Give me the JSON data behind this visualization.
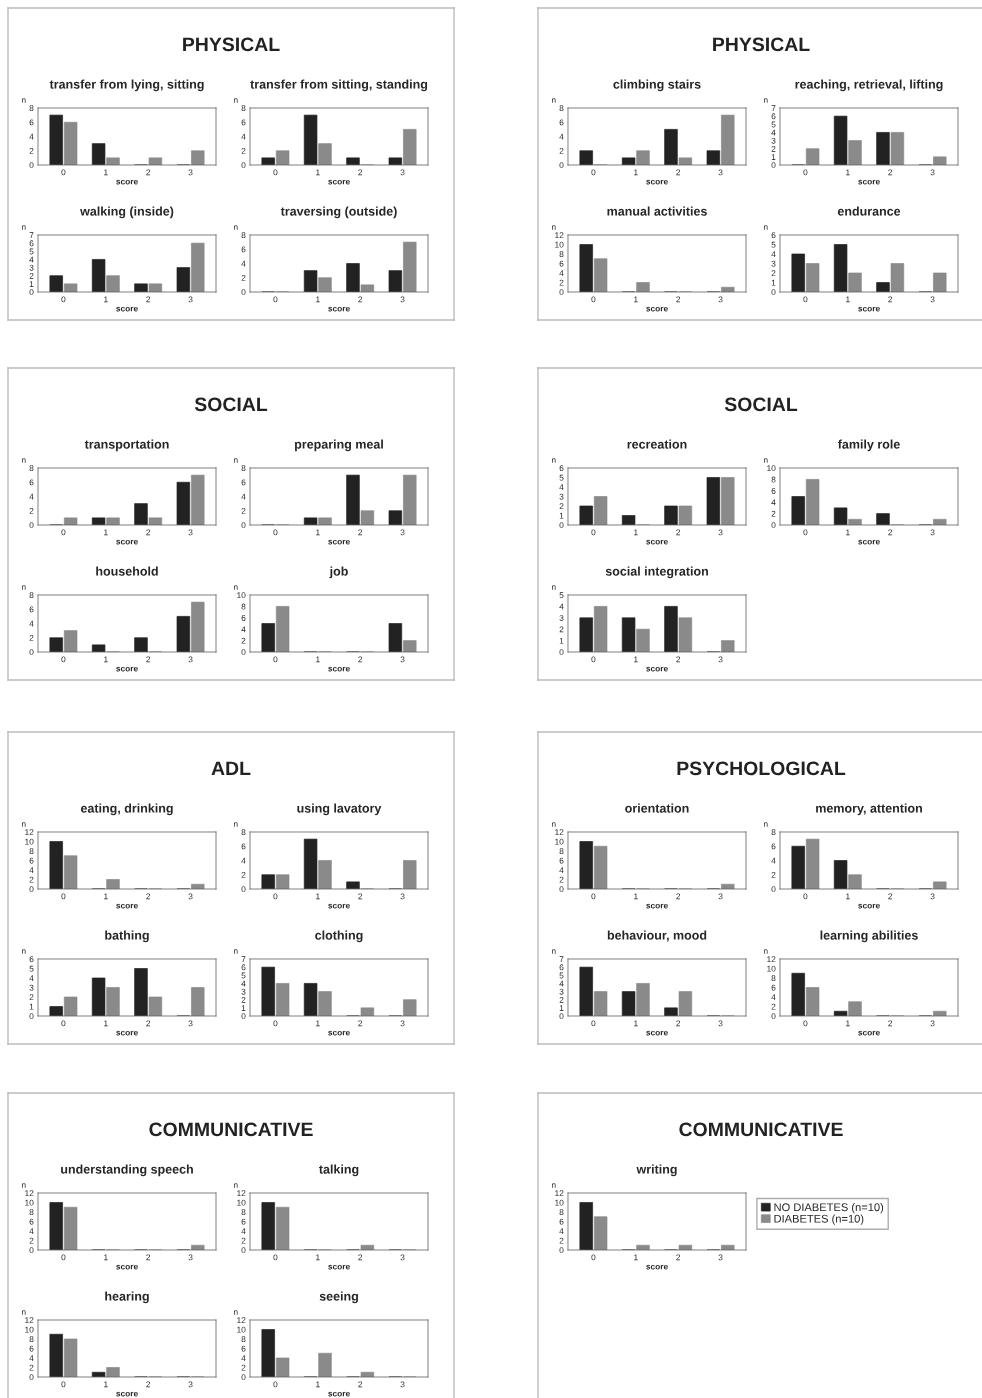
{
  "chart_data": [
    {
      "type": "other",
      "title": "PHYSICAL"
    },
    {
      "type": "bar",
      "title": "transfer from lying, sitting",
      "xlabel": "score",
      "ylabel": "n",
      "categories": [
        "0",
        "1",
        "2",
        "3"
      ],
      "ylim": [
        0,
        8
      ],
      "yticks": [
        0,
        2,
        4,
        6,
        8
      ],
      "series": [
        {
          "color": "#222222",
          "values": [
            7,
            3,
            0,
            0
          ]
        },
        {
          "color": "#8a8a8a",
          "values": [
            6,
            1,
            1,
            2
          ]
        }
      ]
    },
    {
      "type": "bar",
      "title": "transfer from sitting, standing",
      "xlabel": "score",
      "ylabel": "n",
      "categories": [
        "0",
        "1",
        "2",
        "3"
      ],
      "ylim": [
        0,
        8
      ],
      "yticks": [
        0,
        2,
        4,
        6,
        8
      ],
      "series": [
        {
          "color": "#222222",
          "values": [
            1,
            7,
            1,
            1
          ]
        },
        {
          "color": "#8a8a8a",
          "values": [
            2,
            3,
            0,
            5
          ]
        }
      ]
    },
    {
      "type": "bar",
      "title": "walking (inside)",
      "xlabel": "score",
      "ylabel": "n",
      "categories": [
        "0",
        "1",
        "2",
        "3"
      ],
      "ylim": [
        0,
        7
      ],
      "yticks": [
        0,
        1,
        2,
        3,
        4,
        5,
        6,
        7
      ],
      "series": [
        {
          "color": "#222222",
          "values": [
            2,
            4,
            1,
            3
          ]
        },
        {
          "color": "#8a8a8a",
          "values": [
            1,
            2,
            1,
            6
          ]
        }
      ]
    },
    {
      "type": "bar",
      "title": "traversing (outside)",
      "xlabel": "score",
      "ylabel": "n",
      "categories": [
        "0",
        "1",
        "2",
        "3"
      ],
      "ylim": [
        0,
        8
      ],
      "yticks": [
        0,
        2,
        4,
        6,
        8
      ],
      "series": [
        {
          "color": "#222222",
          "values": [
            0,
            3,
            4,
            3
          ]
        },
        {
          "color": "#8a8a8a",
          "values": [
            0,
            2,
            1,
            7
          ]
        }
      ]
    },
    {
      "type": "other",
      "title": "PHYSICAL"
    },
    {
      "type": "bar",
      "title": "climbing stairs",
      "xlabel": "score",
      "ylabel": "n",
      "categories": [
        "0",
        "1",
        "2",
        "3"
      ],
      "ylim": [
        0,
        8
      ],
      "yticks": [
        0,
        2,
        4,
        6,
        8
      ],
      "series": [
        {
          "color": "#222222",
          "values": [
            2,
            1,
            5,
            2
          ]
        },
        {
          "color": "#8a8a8a",
          "values": [
            0,
            2,
            1,
            7
          ]
        }
      ]
    },
    {
      "type": "bar",
      "title": "reaching, retrieval, lifting",
      "xlabel": "score",
      "ylabel": "n",
      "categories": [
        "0",
        "1",
        "2",
        "3"
      ],
      "ylim": [
        0,
        7
      ],
      "yticks": [
        0,
        1,
        2,
        3,
        4,
        5,
        6,
        7
      ],
      "series": [
        {
          "color": "#222222",
          "values": [
            0,
            6,
            4,
            0
          ]
        },
        {
          "color": "#8a8a8a",
          "values": [
            2,
            3,
            4,
            1
          ]
        }
      ]
    },
    {
      "type": "bar",
      "title": "manual activities",
      "xlabel": "score",
      "ylabel": "n",
      "categories": [
        "0",
        "1",
        "2",
        "3"
      ],
      "ylim": [
        0,
        12
      ],
      "yticks": [
        0,
        2,
        4,
        6,
        8,
        10,
        12
      ],
      "series": [
        {
          "color": "#222222",
          "values": [
            10,
            0,
            0,
            0
          ]
        },
        {
          "color": "#8a8a8a",
          "values": [
            7,
            2,
            0,
            1
          ]
        }
      ]
    },
    {
      "type": "bar",
      "title": "endurance",
      "xlabel": "score",
      "ylabel": "n",
      "categories": [
        "0",
        "1",
        "2",
        "3"
      ],
      "ylim": [
        0,
        6
      ],
      "yticks": [
        0,
        1,
        2,
        3,
        4,
        5,
        6
      ],
      "series": [
        {
          "color": "#222222",
          "values": [
            4,
            5,
            1,
            0
          ]
        },
        {
          "color": "#8a8a8a",
          "values": [
            3,
            2,
            3,
            2
          ]
        }
      ]
    },
    {
      "type": "other",
      "title": "SOCIAL"
    },
    {
      "type": "bar",
      "title": "transportation",
      "xlabel": "score",
      "ylabel": "n",
      "categories": [
        "0",
        "1",
        "2",
        "3"
      ],
      "ylim": [
        0,
        8
      ],
      "yticks": [
        0,
        2,
        4,
        6,
        8
      ],
      "series": [
        {
          "color": "#222222",
          "values": [
            0,
            1,
            3,
            6
          ]
        },
        {
          "color": "#8a8a8a",
          "values": [
            1,
            1,
            1,
            7
          ]
        }
      ]
    },
    {
      "type": "bar",
      "title": "preparing meal",
      "xlabel": "score",
      "ylabel": "n",
      "categories": [
        "0",
        "1",
        "2",
        "3"
      ],
      "ylim": [
        0,
        8
      ],
      "yticks": [
        0,
        2,
        4,
        6,
        8
      ],
      "series": [
        {
          "color": "#222222",
          "values": [
            0,
            1,
            7,
            2
          ]
        },
        {
          "color": "#8a8a8a",
          "values": [
            0,
            1,
            2,
            7
          ]
        }
      ]
    },
    {
      "type": "bar",
      "title": "household",
      "xlabel": "score",
      "ylabel": "n",
      "categories": [
        "0",
        "1",
        "2",
        "3"
      ],
      "ylim": [
        0,
        8
      ],
      "yticks": [
        0,
        2,
        4,
        6,
        8
      ],
      "series": [
        {
          "color": "#222222",
          "values": [
            2,
            1,
            2,
            5
          ]
        },
        {
          "color": "#8a8a8a",
          "values": [
            3,
            0,
            0,
            7
          ]
        }
      ]
    },
    {
      "type": "bar",
      "title": "job",
      "xlabel": "score",
      "ylabel": "n",
      "categories": [
        "0",
        "1",
        "2",
        "3"
      ],
      "ylim": [
        0,
        10
      ],
      "yticks": [
        0,
        2,
        4,
        6,
        8,
        10
      ],
      "series": [
        {
          "color": "#222222",
          "values": [
            5,
            0,
            0,
            5
          ]
        },
        {
          "color": "#8a8a8a",
          "values": [
            8,
            0,
            0,
            2
          ]
        }
      ]
    },
    {
      "type": "other",
      "title": "SOCIAL"
    },
    {
      "type": "bar",
      "title": "recreation",
      "xlabel": "score",
      "ylabel": "n",
      "categories": [
        "0",
        "1",
        "2",
        "3"
      ],
      "ylim": [
        0,
        6
      ],
      "yticks": [
        0,
        1,
        2,
        3,
        4,
        5,
        6
      ],
      "series": [
        {
          "color": "#222222",
          "values": [
            2,
            1,
            2,
            5
          ]
        },
        {
          "color": "#8a8a8a",
          "values": [
            3,
            0,
            2,
            5
          ]
        }
      ]
    },
    {
      "type": "bar",
      "title": "family role",
      "xlabel": "score",
      "ylabel": "n",
      "categories": [
        "0",
        "1",
        "2",
        "3"
      ],
      "ylim": [
        0,
        10
      ],
      "yticks": [
        0,
        2,
        4,
        6,
        8,
        10
      ],
      "series": [
        {
          "color": "#222222",
          "values": [
            5,
            3,
            2,
            0
          ]
        },
        {
          "color": "#8a8a8a",
          "values": [
            8,
            1,
            0,
            1
          ]
        }
      ]
    },
    {
      "type": "bar",
      "title": "social integration",
      "xlabel": "score",
      "ylabel": "n",
      "categories": [
        "0",
        "1",
        "2",
        "3"
      ],
      "ylim": [
        0,
        5
      ],
      "yticks": [
        0,
        1,
        2,
        3,
        4,
        5
      ],
      "series": [
        {
          "color": "#222222",
          "values": [
            3,
            3,
            4,
            0
          ]
        },
        {
          "color": "#8a8a8a",
          "values": [
            4,
            2,
            3,
            1
          ]
        }
      ]
    },
    {
      "type": "other",
      "title": "ADL"
    },
    {
      "type": "bar",
      "title": "eating, drinking",
      "xlabel": "score",
      "ylabel": "n",
      "categories": [
        "0",
        "1",
        "2",
        "3"
      ],
      "ylim": [
        0,
        12
      ],
      "yticks": [
        0,
        2,
        4,
        6,
        8,
        10,
        12
      ],
      "series": [
        {
          "color": "#222222",
          "values": [
            10,
            0,
            0,
            0
          ]
        },
        {
          "color": "#8a8a8a",
          "values": [
            7,
            2,
            0,
            1
          ]
        }
      ]
    },
    {
      "type": "bar",
      "title": "using lavatory",
      "xlabel": "score",
      "ylabel": "n",
      "categories": [
        "0",
        "1",
        "2",
        "3"
      ],
      "ylim": [
        0,
        8
      ],
      "yticks": [
        0,
        2,
        4,
        6,
        8
      ],
      "series": [
        {
          "color": "#222222",
          "values": [
            2,
            7,
            1,
            0
          ]
        },
        {
          "color": "#8a8a8a",
          "values": [
            2,
            4,
            0,
            4
          ]
        }
      ]
    },
    {
      "type": "bar",
      "title": "bathing",
      "xlabel": "score",
      "ylabel": "n",
      "categories": [
        "0",
        "1",
        "2",
        "3"
      ],
      "ylim": [
        0,
        6
      ],
      "yticks": [
        0,
        1,
        2,
        3,
        4,
        5,
        6
      ],
      "series": [
        {
          "color": "#222222",
          "values": [
            1,
            4,
            5,
            0
          ]
        },
        {
          "color": "#8a8a8a",
          "values": [
            2,
            3,
            2,
            3
          ]
        }
      ]
    },
    {
      "type": "bar",
      "title": "clothing",
      "xlabel": "score",
      "ylabel": "n",
      "categories": [
        "0",
        "1",
        "2",
        "3"
      ],
      "ylim": [
        0,
        7
      ],
      "yticks": [
        0,
        1,
        2,
        3,
        4,
        5,
        6,
        7
      ],
      "series": [
        {
          "color": "#222222",
          "values": [
            6,
            4,
            0,
            0
          ]
        },
        {
          "color": "#8a8a8a",
          "values": [
            4,
            3,
            1,
            2
          ]
        }
      ]
    },
    {
      "type": "other",
      "title": "PSYCHOLOGICAL"
    },
    {
      "type": "bar",
      "title": "orientation",
      "xlabel": "score",
      "ylabel": "n",
      "categories": [
        "0",
        "1",
        "2",
        "3"
      ],
      "ylim": [
        0,
        12
      ],
      "yticks": [
        0,
        2,
        4,
        6,
        8,
        10,
        12
      ],
      "series": [
        {
          "color": "#222222",
          "values": [
            10,
            0,
            0,
            0
          ]
        },
        {
          "color": "#8a8a8a",
          "values": [
            9,
            0,
            0,
            1
          ]
        }
      ]
    },
    {
      "type": "bar",
      "title": "memory, attention",
      "xlabel": "score",
      "ylabel": "n",
      "categories": [
        "0",
        "1",
        "2",
        "3"
      ],
      "ylim": [
        0,
        8
      ],
      "yticks": [
        0,
        2,
        4,
        6,
        8
      ],
      "series": [
        {
          "color": "#222222",
          "values": [
            6,
            4,
            0,
            0
          ]
        },
        {
          "color": "#8a8a8a",
          "values": [
            7,
            2,
            0,
            1
          ]
        }
      ]
    },
    {
      "type": "bar",
      "title": "behaviour, mood",
      "xlabel": "score",
      "ylabel": "n",
      "categories": [
        "0",
        "1",
        "2",
        "3"
      ],
      "ylim": [
        0,
        7
      ],
      "yticks": [
        0,
        1,
        2,
        3,
        4,
        5,
        6,
        7
      ],
      "series": [
        {
          "color": "#222222",
          "values": [
            6,
            3,
            1,
            0
          ]
        },
        {
          "color": "#8a8a8a",
          "values": [
            3,
            4,
            3,
            0
          ]
        }
      ]
    },
    {
      "type": "bar",
      "title": "learning abilities",
      "xlabel": "score",
      "ylabel": "n",
      "categories": [
        "0",
        "1",
        "2",
        "3"
      ],
      "ylim": [
        0,
        12
      ],
      "yticks": [
        0,
        2,
        4,
        6,
        8,
        10,
        12
      ],
      "series": [
        {
          "color": "#222222",
          "values": [
            9,
            1,
            0,
            0
          ]
        },
        {
          "color": "#8a8a8a",
          "values": [
            6,
            3,
            0,
            1
          ]
        }
      ]
    },
    {
      "type": "other",
      "title": "COMMUNICATIVE"
    },
    {
      "type": "bar",
      "title": "understanding speech",
      "xlabel": "score",
      "ylabel": "n",
      "categories": [
        "0",
        "1",
        "2",
        "3"
      ],
      "ylim": [
        0,
        12
      ],
      "yticks": [
        0,
        2,
        4,
        6,
        8,
        10,
        12
      ],
      "series": [
        {
          "color": "#222222",
          "values": [
            10,
            0,
            0,
            0
          ]
        },
        {
          "color": "#8a8a8a",
          "values": [
            9,
            0,
            0,
            1
          ]
        }
      ]
    },
    {
      "type": "bar",
      "title": "talking",
      "xlabel": "score",
      "ylabel": "n",
      "categories": [
        "0",
        "1",
        "2",
        "3"
      ],
      "ylim": [
        0,
        12
      ],
      "yticks": [
        0,
        2,
        4,
        6,
        8,
        10,
        12
      ],
      "series": [
        {
          "color": "#222222",
          "values": [
            10,
            0,
            0,
            0
          ]
        },
        {
          "color": "#8a8a8a",
          "values": [
            9,
            0,
            1,
            0
          ]
        }
      ]
    },
    {
      "type": "bar",
      "title": "hearing",
      "xlabel": "score",
      "ylabel": "n",
      "categories": [
        "0",
        "1",
        "2",
        "3"
      ],
      "ylim": [
        0,
        12
      ],
      "yticks": [
        0,
        2,
        4,
        6,
        8,
        10,
        12
      ],
      "series": [
        {
          "color": "#222222",
          "values": [
            9,
            1,
            0,
            0
          ]
        },
        {
          "color": "#8a8a8a",
          "values": [
            8,
            2,
            0,
            0
          ]
        }
      ]
    },
    {
      "type": "bar",
      "title": "seeing",
      "xlabel": "score",
      "ylabel": "n",
      "categories": [
        "0",
        "1",
        "2",
        "3"
      ],
      "ylim": [
        0,
        12
      ],
      "yticks": [
        0,
        2,
        4,
        6,
        8,
        10,
        12
      ],
      "series": [
        {
          "color": "#222222",
          "values": [
            10,
            0,
            0,
            0
          ]
        },
        {
          "color": "#8a8a8a",
          "values": [
            4,
            5,
            1,
            0
          ]
        }
      ]
    },
    {
      "type": "other",
      "title": "COMMUNICATIVE"
    },
    {
      "type": "bar",
      "title": "writing",
      "xlabel": "score",
      "ylabel": "n",
      "categories": [
        "0",
        "1",
        "2",
        "3"
      ],
      "ylim": [
        0,
        12
      ],
      "yticks": [
        0,
        2,
        4,
        6,
        8,
        10,
        12
      ],
      "legend": "right",
      "series": [
        {
          "name": "NO DIABETES (n=10)",
          "color": "#222222",
          "values": [
            10,
            0,
            0,
            0
          ]
        },
        {
          "name": "DIABETES (n=10)",
          "color": "#8a8a8a",
          "values": [
            7,
            1,
            1,
            1
          ]
        }
      ]
    }
  ]
}
